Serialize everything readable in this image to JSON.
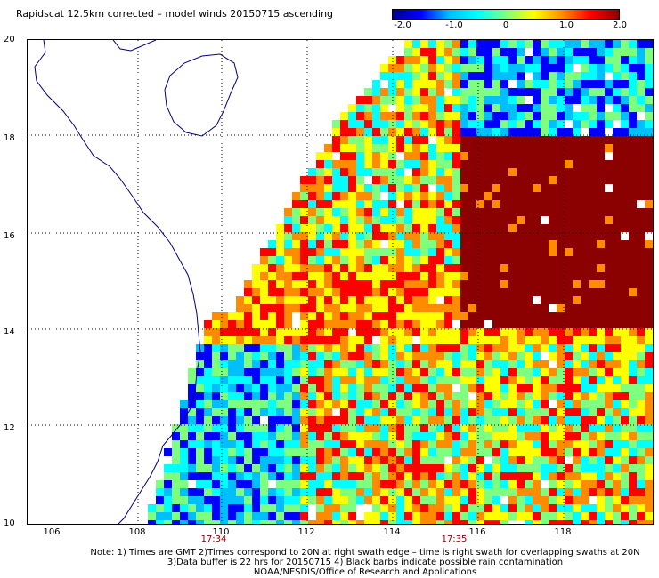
{
  "title": "Rapidscat 12.5km corrected – model winds 20150715 ascending",
  "colorbar": {
    "ticks": [
      "-2.0",
      "-1.0",
      "0",
      "1.0",
      "2.0"
    ],
    "gradient": [
      "#00008b",
      "#0000ff",
      "#00bfff",
      "#00ffff",
      "#7fff7f",
      "#ffff00",
      "#ff8c00",
      "#ff0000",
      "#8b0000"
    ]
  },
  "map": {
    "lat_labels": [
      "20",
      "18",
      "16",
      "14",
      "12",
      "10"
    ],
    "lon_labels": [
      "106",
      "108",
      "110",
      "112",
      "114",
      "116",
      "118"
    ],
    "time_labels": [
      "17:34",
      "17:35"
    ],
    "land_color": "#ffffff",
    "coast_color": "#000080"
  },
  "notes": [
    "Note: 1) Times are GMT 2)Times correspond to 20N at right swath edge – time is right swath for overlapping swaths at 20N",
    "3)Data buffer is 22 hrs for 20150715 4) Black barbs indicate possible rain contamination",
    "NOAA/NESDIS/Office of Research and Applications"
  ]
}
